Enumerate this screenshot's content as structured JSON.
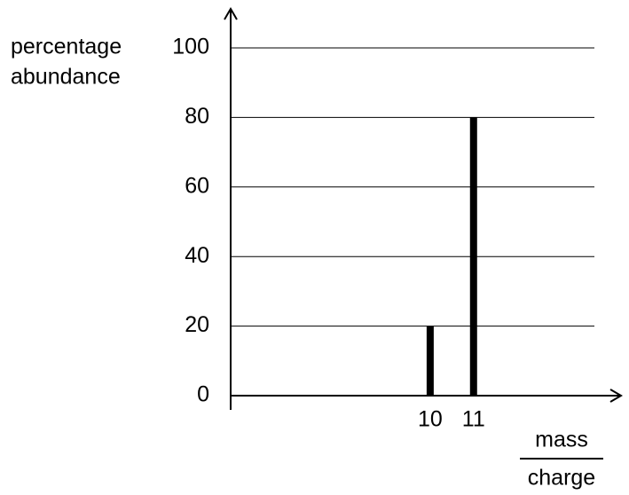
{
  "chart_data": {
    "type": "bar",
    "ylabel": [
      "percentage",
      "abundance"
    ],
    "xlabel": [
      "mass",
      "charge"
    ],
    "x": [
      10,
      11
    ],
    "values": [
      20,
      80
    ],
    "color": "#000000",
    "xlim": [
      5.4,
      14.4
    ],
    "xticks": [
      10,
      11
    ],
    "ylim": [
      0,
      100
    ],
    "yticks": [
      0,
      20,
      40,
      60,
      80,
      100
    ],
    "grid": true
  }
}
